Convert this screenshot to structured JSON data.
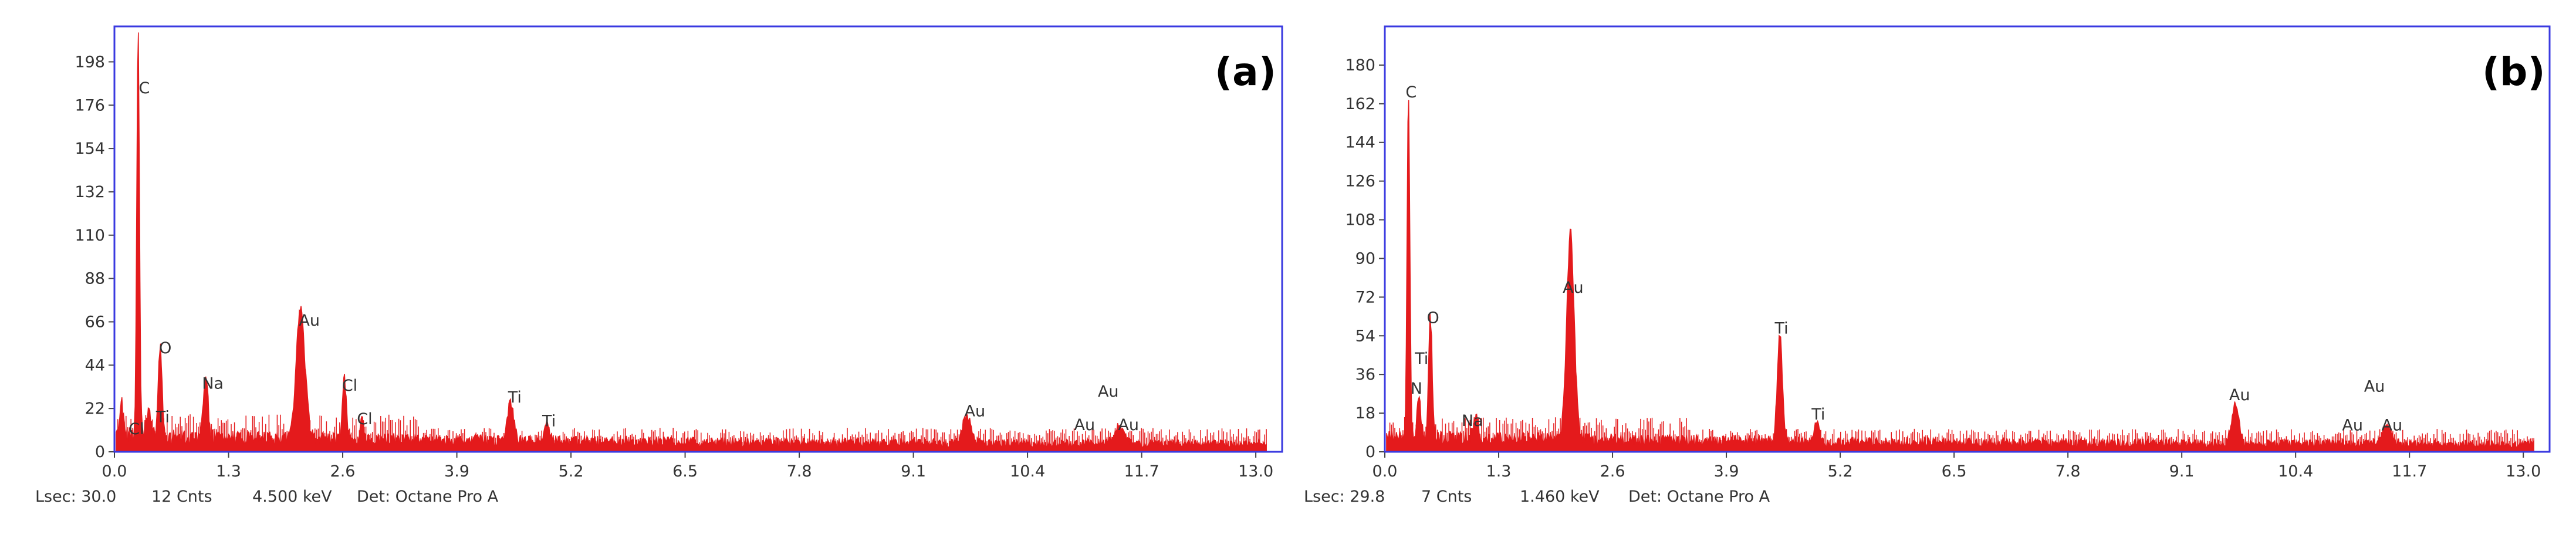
{
  "colors": {
    "spectrum": "#e41a1c",
    "frame": "#3a3ae0",
    "axis": "#444444",
    "text": "#333333"
  },
  "chart_data": [
    {
      "type": "area",
      "panel_label": "(a)",
      "xlim": [
        0,
        13.3
      ],
      "ylim": [
        0,
        216
      ],
      "x_ticks": [
        "0.0",
        "1.3",
        "2.6",
        "3.9",
        "5.2",
        "6.5",
        "7.8",
        "9.1",
        "10.4",
        "11.7",
        "13.0"
      ],
      "y_ticks": [
        "0",
        "22",
        "44",
        "66",
        "88",
        "110",
        "132",
        "154",
        "176",
        "198"
      ],
      "background_level": 8,
      "peaks": [
        {
          "x": 0.08,
          "y": 18,
          "w": 0.03
        },
        {
          "x": 0.27,
          "y": 205,
          "w": 0.022
        },
        {
          "x": 0.39,
          "y": 14,
          "w": 0.04
        },
        {
          "x": 0.52,
          "y": 45,
          "w": 0.03
        },
        {
          "x": 1.04,
          "y": 28,
          "w": 0.04
        },
        {
          "x": 2.12,
          "y": 68,
          "w": 0.07
        },
        {
          "x": 2.62,
          "y": 30,
          "w": 0.03
        },
        {
          "x": 2.82,
          "y": 10,
          "w": 0.03
        },
        {
          "x": 4.51,
          "y": 20,
          "w": 0.05
        },
        {
          "x": 4.93,
          "y": 9,
          "w": 0.04
        },
        {
          "x": 9.71,
          "y": 14,
          "w": 0.07
        },
        {
          "x": 11.44,
          "y": 9,
          "w": 0.08
        }
      ],
      "labels": [
        {
          "text": "C",
          "x": 0.34,
          "y": 182
        },
        {
          "text": "O",
          "x": 0.58,
          "y": 50
        },
        {
          "text": "Na",
          "x": 1.12,
          "y": 32
        },
        {
          "text": "Au",
          "x": 2.22,
          "y": 64
        },
        {
          "text": "Cl",
          "x": 2.68,
          "y": 31
        },
        {
          "text": "Cl",
          "x": 2.85,
          "y": 14
        },
        {
          "text": "Ti",
          "x": 4.56,
          "y": 25
        },
        {
          "text": "Ti",
          "x": 4.95,
          "y": 13
        },
        {
          "text": "Cl",
          "x": 0.25,
          "y": 9
        },
        {
          "text": "Ti",
          "x": 0.55,
          "y": 15
        },
        {
          "text": "Au",
          "x": 9.8,
          "y": 18
        },
        {
          "text": "Au",
          "x": 11.32,
          "y": 28
        },
        {
          "text": "Au",
          "x": 11.05,
          "y": 11
        },
        {
          "text": "Au",
          "x": 11.55,
          "y": 11
        }
      ],
      "footer": {
        "lsec": "Lsec: 30.0",
        "cnts": "12 Cnts",
        "kev": "4.500 keV",
        "det": "Det: Octane Pro A"
      }
    },
    {
      "type": "area",
      "panel_label": "(b)",
      "xlim": [
        0,
        13.3
      ],
      "ylim": [
        0,
        198
      ],
      "x_ticks": [
        "0.0",
        "1.3",
        "2.6",
        "3.9",
        "5.2",
        "6.5",
        "7.8",
        "9.1",
        "10.4",
        "11.7",
        "13.0"
      ],
      "y_ticks": [
        "0",
        "18",
        "36",
        "54",
        "72",
        "90",
        "108",
        "126",
        "144",
        "162",
        "180"
      ],
      "background_level": 7,
      "peaks": [
        {
          "x": 0.27,
          "y": 160,
          "w": 0.022
        },
        {
          "x": 0.39,
          "y": 20,
          "w": 0.03
        },
        {
          "x": 0.52,
          "y": 56,
          "w": 0.03
        },
        {
          "x": 1.04,
          "y": 10,
          "w": 0.04
        },
        {
          "x": 2.12,
          "y": 96,
          "w": 0.06
        },
        {
          "x": 4.51,
          "y": 50,
          "w": 0.04
        },
        {
          "x": 4.93,
          "y": 9,
          "w": 0.04
        },
        {
          "x": 9.71,
          "y": 18,
          "w": 0.06
        },
        {
          "x": 11.44,
          "y": 9,
          "w": 0.08
        }
      ],
      "labels": [
        {
          "text": "C",
          "x": 0.3,
          "y": 165
        },
        {
          "text": "O",
          "x": 0.55,
          "y": 60
        },
        {
          "text": "Ti",
          "x": 0.42,
          "y": 41
        },
        {
          "text": "N",
          "x": 0.36,
          "y": 27
        },
        {
          "text": "Na",
          "x": 1.0,
          "y": 12
        },
        {
          "text": "Au",
          "x": 2.15,
          "y": 74
        },
        {
          "text": "Ti",
          "x": 4.53,
          "y": 55
        },
        {
          "text": "Ti",
          "x": 4.95,
          "y": 15
        },
        {
          "text": "Au",
          "x": 9.76,
          "y": 24
        },
        {
          "text": "Au",
          "x": 11.3,
          "y": 28
        },
        {
          "text": "Au",
          "x": 11.05,
          "y": 10
        },
        {
          "text": "Au",
          "x": 11.5,
          "y": 10
        }
      ],
      "footer": {
        "lsec": "Lsec: 29.8",
        "cnts": "7 Cnts",
        "kev": "1.460 keV",
        "det": "Det: Octane Pro A"
      }
    }
  ]
}
